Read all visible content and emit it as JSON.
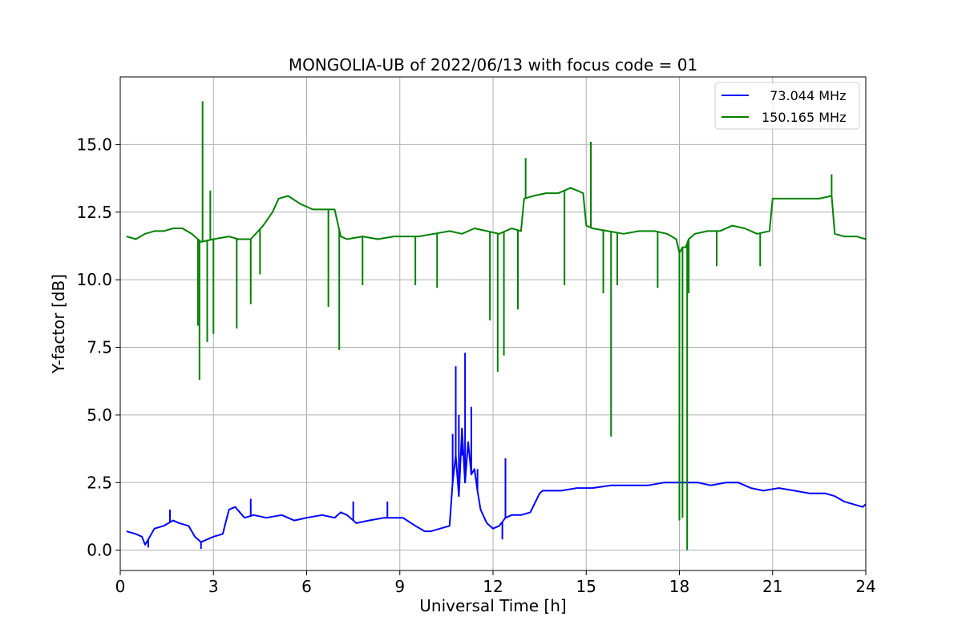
{
  "chart_data": {
    "type": "line",
    "title": "MONGOLIA-UB of 2022/06/13 with focus code = 01",
    "xlabel": "Universal Time [h]",
    "ylabel": "Y-factor [dB]",
    "xlim": [
      0,
      24
    ],
    "ylim": [
      -0.75,
      17.5
    ],
    "x_ticks": [
      0,
      3,
      6,
      9,
      12,
      15,
      18,
      21,
      24
    ],
    "y_ticks": [
      0.0,
      2.5,
      5.0,
      7.5,
      10.0,
      12.5,
      15.0
    ],
    "x_tick_labels": [
      "0",
      "3",
      "6",
      "9",
      "12",
      "15",
      "18",
      "21",
      "24"
    ],
    "y_tick_labels": [
      "0.0",
      "2.5",
      "5.0",
      "7.5",
      "10.0",
      "12.5",
      "15.0"
    ],
    "grid": true,
    "legend_position": "top-right",
    "series": [
      {
        "name": "73.044 MHz",
        "legend_label": "  73.044 MHz",
        "color": "#0000ff",
        "x": [
          0.2,
          0.5,
          0.7,
          0.8,
          0.9,
          1.1,
          1.4,
          1.7,
          1.9,
          2.2,
          2.4,
          2.6,
          2.8,
          3.0,
          3.3,
          3.5,
          3.7,
          4.0,
          4.3,
          4.7,
          5.2,
          5.6,
          6.0,
          6.5,
          6.9,
          7.1,
          7.3,
          7.6,
          8.0,
          8.5,
          8.8,
          9.1,
          9.5,
          9.8,
          10.0,
          10.3,
          10.6,
          10.7,
          10.8,
          10.9,
          11.0,
          11.1,
          11.2,
          11.3,
          11.4,
          11.5,
          11.6,
          11.8,
          12.0,
          12.2,
          12.4,
          12.6,
          12.9,
          13.2,
          13.5,
          13.6,
          13.8,
          14.2,
          14.7,
          15.2,
          15.8,
          16.5,
          17.0,
          17.5,
          18.0,
          18.3,
          18.6,
          19.0,
          19.5,
          19.9,
          20.3,
          20.7,
          21.2,
          21.7,
          22.2,
          22.7,
          23.0,
          23.3,
          23.6,
          23.9,
          24.0
        ],
        "y": [
          0.7,
          0.6,
          0.5,
          0.2,
          0.4,
          0.8,
          0.9,
          1.1,
          1.0,
          0.9,
          0.5,
          0.3,
          0.4,
          0.5,
          0.6,
          1.5,
          1.6,
          1.2,
          1.3,
          1.2,
          1.3,
          1.1,
          1.2,
          1.3,
          1.2,
          1.4,
          1.3,
          1.0,
          1.1,
          1.2,
          1.2,
          1.2,
          0.9,
          0.7,
          0.7,
          0.8,
          0.9,
          2.5,
          3.5,
          2.0,
          4.5,
          2.5,
          4.0,
          2.8,
          3.0,
          2.2,
          1.5,
          1.0,
          0.8,
          0.9,
          1.2,
          1.3,
          1.3,
          1.4,
          2.1,
          2.2,
          2.2,
          2.2,
          2.3,
          2.3,
          2.4,
          2.4,
          2.4,
          2.5,
          2.5,
          2.5,
          2.5,
          2.4,
          2.5,
          2.5,
          2.3,
          2.2,
          2.3,
          2.2,
          2.1,
          2.1,
          2.0,
          1.8,
          1.7,
          1.6,
          1.7
        ],
        "spikes": [
          [
            1.6,
            1.5
          ],
          [
            10.7,
            4.3
          ],
          [
            10.8,
            6.8
          ],
          [
            10.9,
            5.0
          ],
          [
            11.0,
            3.5
          ],
          [
            11.1,
            7.3
          ],
          [
            11.3,
            5.3
          ],
          [
            11.5,
            3.0
          ],
          [
            12.4,
            3.4
          ],
          [
            12.3,
            0.4
          ],
          [
            0.9,
            0.1
          ],
          [
            2.6,
            0.05
          ],
          [
            4.2,
            1.9
          ],
          [
            7.5,
            1.8
          ],
          [
            8.6,
            1.8
          ]
        ]
      },
      {
        "name": "150.165 MHz",
        "legend_label": "150.165 MHz",
        "color": "#008000",
        "x": [
          0.2,
          0.5,
          0.8,
          1.1,
          1.4,
          1.7,
          2.0,
          2.3,
          2.6,
          3.0,
          3.5,
          3.8,
          4.2,
          4.6,
          4.9,
          5.1,
          5.4,
          5.8,
          6.2,
          6.6,
          6.9,
          7.1,
          7.3,
          7.8,
          8.3,
          8.8,
          9.2,
          9.6,
          10.1,
          10.6,
          11.0,
          11.4,
          11.8,
          12.2,
          12.6,
          12.9,
          13.0,
          13.3,
          13.7,
          14.1,
          14.5,
          14.9,
          15.0,
          15.2,
          15.7,
          16.2,
          16.7,
          17.2,
          17.6,
          17.9,
          18.0,
          18.1,
          18.2,
          18.3,
          18.5,
          18.9,
          19.3,
          19.7,
          20.1,
          20.5,
          20.9,
          21.0,
          21.5,
          22.0,
          22.5,
          22.9,
          23.0,
          23.3,
          23.7,
          24.0
        ],
        "y": [
          11.6,
          11.5,
          11.7,
          11.8,
          11.8,
          11.9,
          11.9,
          11.7,
          11.4,
          11.5,
          11.6,
          11.5,
          11.5,
          12.0,
          12.5,
          13.0,
          13.1,
          12.8,
          12.6,
          12.6,
          12.6,
          11.6,
          11.5,
          11.6,
          11.5,
          11.6,
          11.6,
          11.6,
          11.7,
          11.8,
          11.7,
          11.9,
          11.8,
          11.7,
          11.9,
          11.8,
          13.0,
          13.1,
          13.2,
          13.2,
          13.4,
          13.2,
          12.0,
          11.9,
          11.8,
          11.7,
          11.8,
          11.8,
          11.7,
          11.5,
          11.0,
          11.2,
          11.2,
          11.5,
          11.7,
          11.8,
          11.8,
          12.0,
          11.9,
          11.7,
          11.8,
          13.0,
          13.0,
          13.0,
          13.0,
          13.1,
          11.7,
          11.6,
          11.6,
          11.5
        ],
        "spikes": [
          [
            2.55,
            6.3
          ],
          [
            2.5,
            8.3
          ],
          [
            2.65,
            16.6
          ],
          [
            2.8,
            7.7
          ],
          [
            2.9,
            13.3
          ],
          [
            3.0,
            8.0
          ],
          [
            3.75,
            8.2
          ],
          [
            4.2,
            9.1
          ],
          [
            4.5,
            10.2
          ],
          [
            6.7,
            9.0
          ],
          [
            7.05,
            7.4
          ],
          [
            7.8,
            9.8
          ],
          [
            9.5,
            9.8
          ],
          [
            10.2,
            9.7
          ],
          [
            11.9,
            8.5
          ],
          [
            12.15,
            6.6
          ],
          [
            12.35,
            7.2
          ],
          [
            12.8,
            8.9
          ],
          [
            13.05,
            14.5
          ],
          [
            14.3,
            9.8
          ],
          [
            15.15,
            15.1
          ],
          [
            15.55,
            9.5
          ],
          [
            15.8,
            4.2
          ],
          [
            16.0,
            9.8
          ],
          [
            17.3,
            9.7
          ],
          [
            18.0,
            1.1
          ],
          [
            18.1,
            1.2
          ],
          [
            18.25,
            0.0
          ],
          [
            18.3,
            9.5
          ],
          [
            19.2,
            10.5
          ],
          [
            20.6,
            10.5
          ],
          [
            22.9,
            13.9
          ]
        ]
      }
    ]
  }
}
